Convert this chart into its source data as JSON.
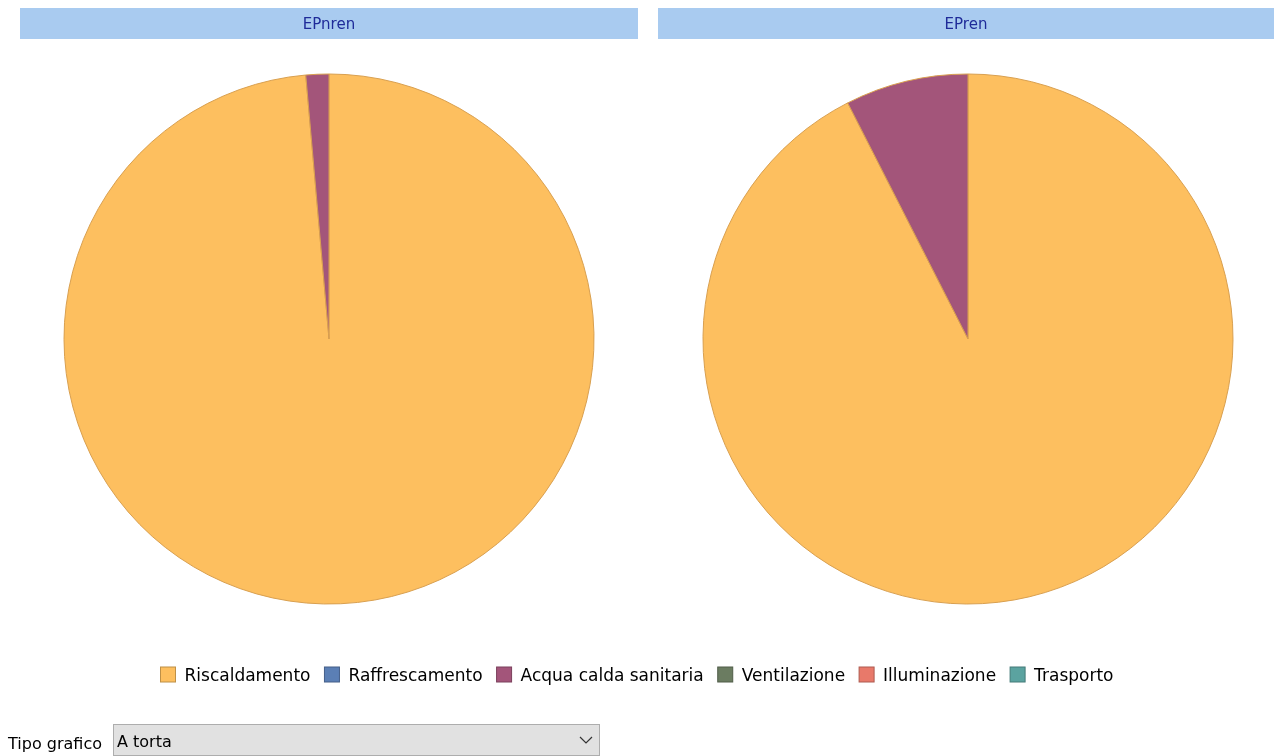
{
  "chart_data": [
    {
      "type": "pie",
      "categories": [
        "Riscaldamento",
        "Raffrescamento",
        "Acqua calda sanitaria",
        "Ventilazione",
        "Illuminazione",
        "Trasporto"
      ],
      "colors": [
        "#fdbf5f",
        "#5b7fb5",
        "#a3557a",
        "#6b7c61",
        "#e8796a",
        "#5ba3a0"
      ],
      "legend": "bottom",
      "series": [
        {
          "name": "EPnren",
          "values": [
            98.6,
            0,
            1.4,
            0,
            0,
            0
          ]
        },
        {
          "name": "EPren",
          "values": [
            92.5,
            0,
            7.5,
            0,
            0,
            0
          ]
        }
      ]
    },
    {
      "type": "other",
      "annotations": [
        "Tipo grafico",
        "A torta"
      ]
    }
  ]
}
